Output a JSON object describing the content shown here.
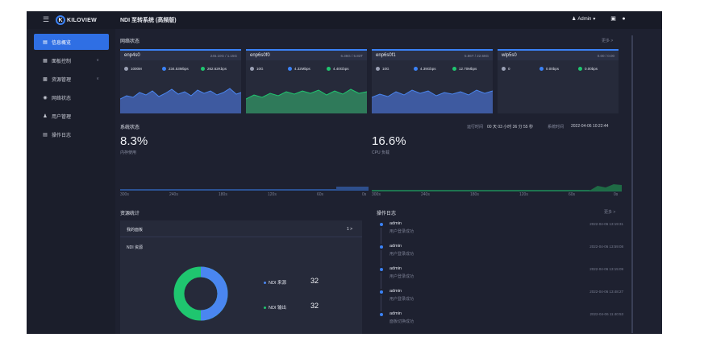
{
  "header": {
    "logo_text": "KILOVIEW",
    "logo_mark": "K",
    "title": "NDI 至转系统 (高频版)",
    "user": "Admin",
    "user_caret": "▾",
    "icons": [
      "user-icon",
      "chat-icon",
      "info-icon"
    ]
  },
  "sidebar": {
    "items": [
      {
        "label": "信息概览",
        "icon": "dashboard-icon",
        "active": true
      },
      {
        "label": "面板控制",
        "icon": "panel-icon",
        "expandable": true
      },
      {
        "label": "资源管理",
        "icon": "resource-icon",
        "expandable": true
      },
      {
        "label": "网络状态",
        "icon": "network-icon"
      },
      {
        "label": "用户管理",
        "icon": "user-icon"
      },
      {
        "label": "操作日志",
        "icon": "log-icon"
      }
    ],
    "chevron": "∨"
  },
  "network": {
    "title": "网络状态",
    "more": "更多 >",
    "cards": [
      {
        "name": "enp4s0",
        "usage": "245.10G / 1.15G",
        "speed": "1000M",
        "up": "234.53Mbps",
        "down": "262.62Kbps",
        "color": "#3e5aa0"
      },
      {
        "name": "enp6s0f0",
        "usage": "6.36G / 5.83T",
        "speed": "10G",
        "up": "4.32Mbps",
        "down": "4.40Gbps",
        "color": "#2f7a5a"
      },
      {
        "name": "enp6s0f1",
        "usage": "5.86T / 22.66G",
        "speed": "10G",
        "up": "4.39Gbps",
        "down": "12.70Mbps",
        "color": "#3e5aa0"
      },
      {
        "name": "wlp5s0",
        "usage": "0.00 / 0.00",
        "speed": "0",
        "up": "0.00bps",
        "down": "0.00bps",
        "color": "#3e5aa0"
      }
    ]
  },
  "system": {
    "title": "系统状态",
    "uptime_label": "运行时间",
    "uptime": "00 天 03 小时 36 分 55 秒",
    "time_label": "系统时间",
    "time": "2022-04-06 10:22:44",
    "memory": {
      "value": "8.3%",
      "label": "内存使用"
    },
    "cpu": {
      "value": "16.6%",
      "label": "CPU 负载"
    },
    "ticks": [
      "300s",
      "240s",
      "180s",
      "120s",
      "60s",
      "0s"
    ]
  },
  "resources": {
    "title": "资源统计",
    "my_panels": "我的面板",
    "my_panels_count": "1 >",
    "ndi_label": "NDI 资源",
    "source_label": "NDI 来源",
    "source_value": "32",
    "output_label": "NDI 输出",
    "output_value": "32",
    "source_color": "#4a86f0",
    "output_color": "#1fc66f"
  },
  "logs": {
    "title": "操作日志",
    "more": "更多 >",
    "entries": [
      {
        "user": "admin",
        "msg": "用户登录成功",
        "time": "2022-04-06 13:19:31"
      },
      {
        "user": "admin",
        "msg": "用户登录成功",
        "time": "2022-04-06 13:59:08"
      },
      {
        "user": "admin",
        "msg": "用户登录成功",
        "time": "2022-04-06 13:15:09"
      },
      {
        "user": "admin",
        "msg": "用户登录成功",
        "time": "2022-04-06 13:48:27"
      },
      {
        "user": "admin",
        "msg": "面板切换成功",
        "time": "2022-04-06 11:40:53"
      }
    ]
  }
}
